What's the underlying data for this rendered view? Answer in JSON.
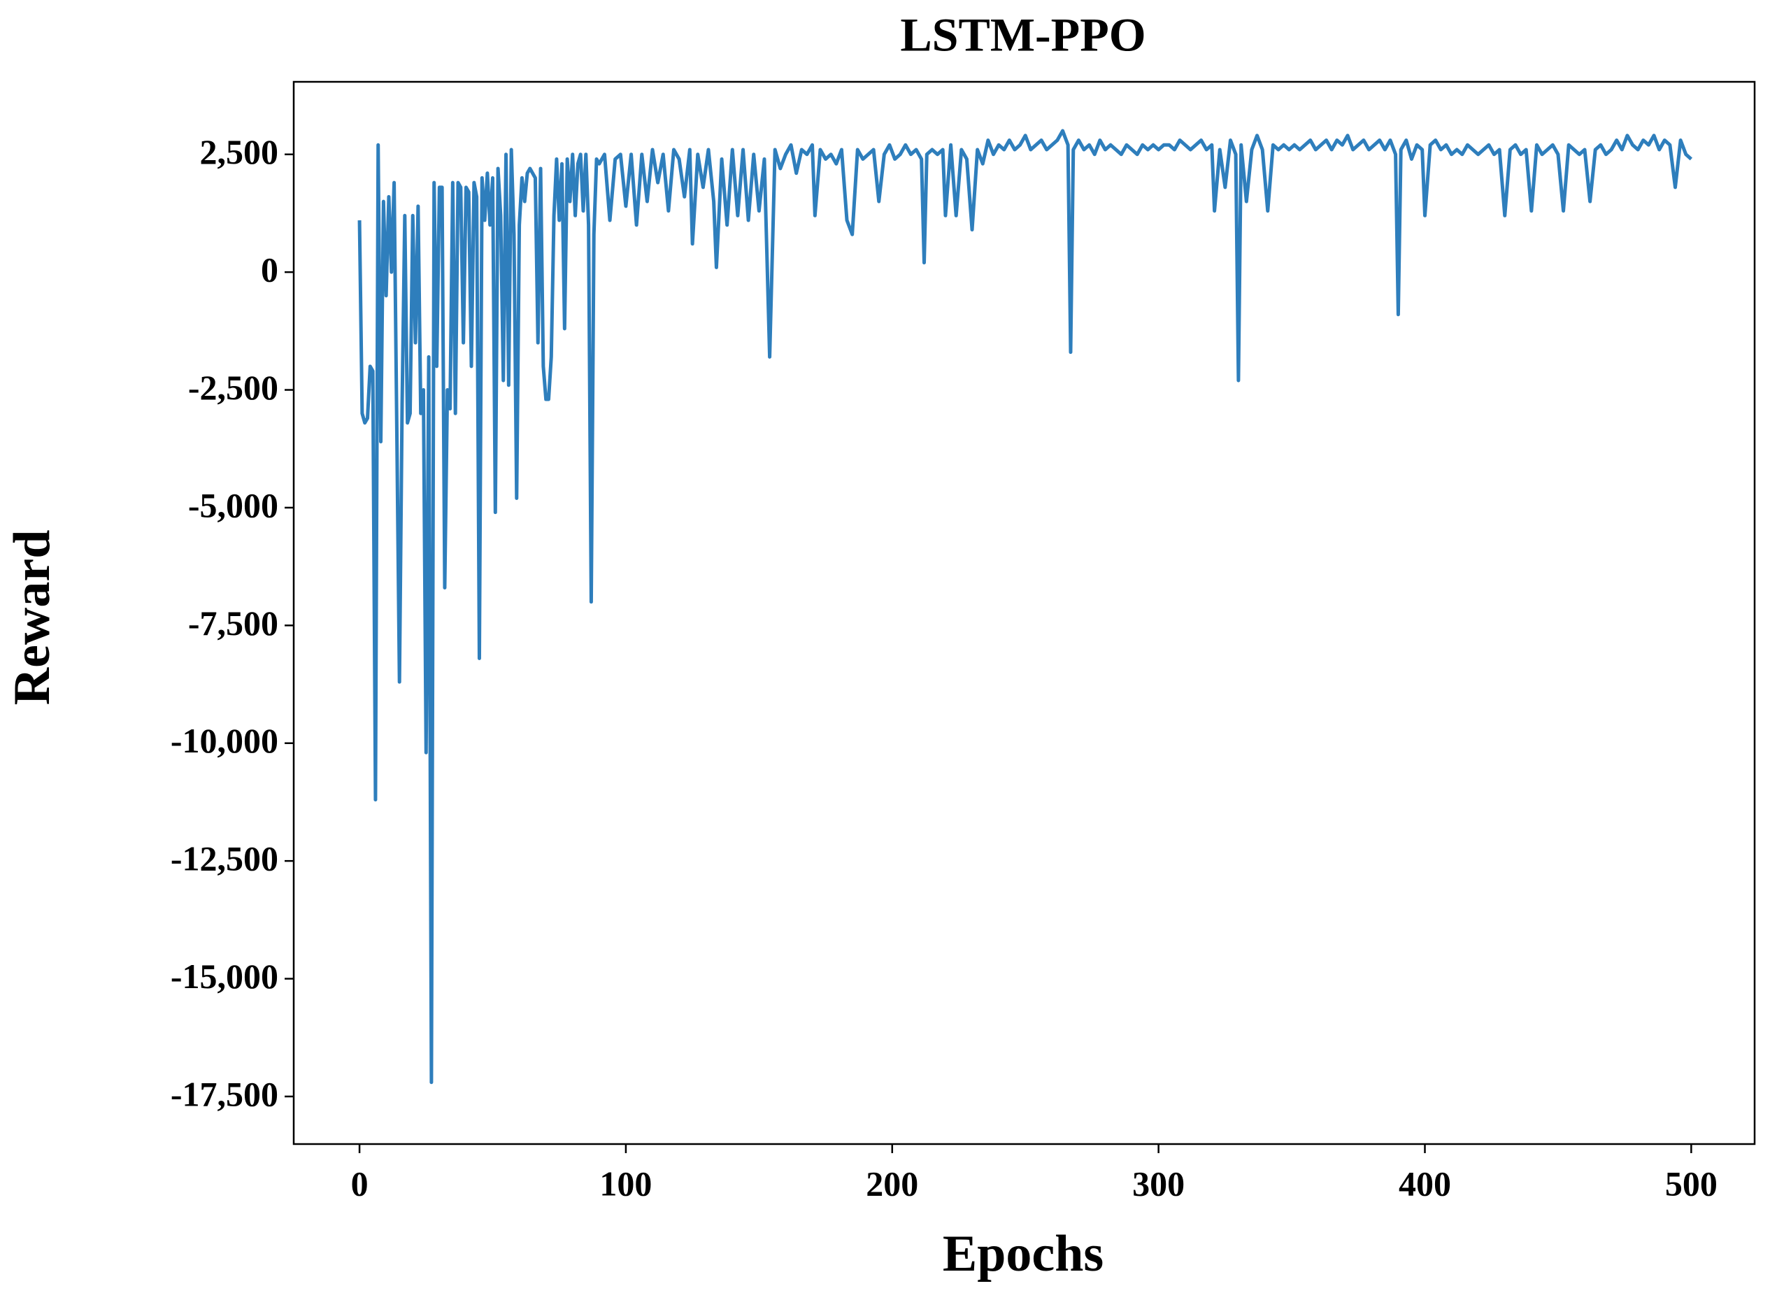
{
  "chart_data": {
    "type": "line",
    "title": "LSTM-PPO",
    "x_label": "Epochs",
    "y_label": "Reward",
    "xlim": [
      -24.7,
      523.8
    ],
    "xticks": [
      0,
      100,
      200,
      300,
      400,
      500
    ],
    "ylim": [
      -18510,
      4040
    ],
    "yticks": [
      {
        "value": 2500,
        "label": "2,500"
      },
      0,
      {
        "value": -2500,
        "label": "-2,500"
      },
      {
        "value": -5000,
        "label": "-5,000"
      },
      {
        "value": -7500,
        "label": "-7,500"
      },
      {
        "value": -10000,
        "label": "-10,000"
      },
      {
        "value": -12500,
        "label": "-12,500"
      },
      {
        "value": -15000,
        "label": "-15,000"
      },
      {
        "value": -17500,
        "label": "-17,500"
      }
    ],
    "grid": false,
    "series": [
      {
        "name": "Reward",
        "color": "#2e7ebc",
        "x": [
          0,
          1,
          2,
          3,
          4,
          5,
          6,
          7,
          8,
          9,
          10,
          11,
          12,
          13,
          14,
          15,
          16,
          17,
          18,
          19,
          20,
          21,
          22,
          23,
          24,
          25,
          26,
          27,
          28,
          29,
          30,
          31,
          32,
          33,
          34,
          35,
          36,
          37,
          38,
          39,
          40,
          41,
          42,
          43,
          44,
          45,
          46,
          47,
          48,
          49,
          50,
          51,
          52,
          53,
          54,
          55,
          56,
          57,
          58,
          59,
          60,
          61,
          62,
          63,
          64,
          65,
          66,
          67,
          68,
          69,
          70,
          71,
          72,
          73,
          74,
          75,
          76,
          77,
          78,
          79,
          80,
          81,
          82,
          83,
          84,
          85,
          86,
          87,
          88,
          89,
          90,
          92,
          94,
          96,
          98,
          100,
          102,
          104,
          106,
          108,
          110,
          112,
          114,
          116,
          118,
          120,
          122,
          124,
          125,
          127,
          129,
          131,
          133,
          134,
          136,
          138,
          140,
          142,
          144,
          146,
          148,
          150,
          152,
          154,
          156,
          158,
          160,
          162,
          164,
          166,
          168,
          170,
          171,
          173,
          175,
          177,
          179,
          181,
          183,
          185,
          187,
          189,
          191,
          193,
          195,
          197,
          199,
          201,
          203,
          205,
          207,
          209,
          211,
          212,
          213,
          215,
          217,
          219,
          220,
          222,
          224,
          226,
          228,
          230,
          232,
          234,
          236,
          238,
          240,
          242,
          244,
          246,
          248,
          250,
          252,
          254,
          256,
          258,
          260,
          262,
          264,
          266,
          267,
          268,
          270,
          272,
          274,
          276,
          278,
          280,
          282,
          284,
          286,
          288,
          290,
          292,
          294,
          296,
          298,
          300,
          302,
          304,
          306,
          308,
          310,
          312,
          314,
          316,
          318,
          320,
          321,
          323,
          325,
          327,
          329,
          330,
          331,
          333,
          335,
          337,
          339,
          341,
          343,
          345,
          347,
          349,
          351,
          353,
          355,
          357,
          359,
          361,
          363,
          365,
          367,
          369,
          371,
          373,
          375,
          377,
          379,
          381,
          383,
          385,
          387,
          389,
          390,
          391,
          393,
          395,
          397,
          399,
          400,
          402,
          404,
          406,
          408,
          410,
          412,
          414,
          416,
          418,
          420,
          422,
          424,
          426,
          428,
          430,
          432,
          434,
          436,
          438,
          440,
          442,
          444,
          446,
          448,
          450,
          452,
          454,
          456,
          458,
          460,
          462,
          464,
          466,
          468,
          470,
          472,
          474,
          476,
          478,
          480,
          482,
          484,
          486,
          488,
          490,
          492,
          494,
          496,
          498,
          500
        ],
        "values": [
          1100,
          -3000,
          -3200,
          -3100,
          -2000,
          -2100,
          -11200,
          2700,
          -3600,
          1500,
          -500,
          1600,
          0,
          1900,
          -3300,
          -8700,
          -2800,
          1200,
          -3200,
          -3000,
          1200,
          -1500,
          1400,
          -3000,
          -2500,
          -10200,
          -1800,
          -17200,
          1900,
          -2000,
          1800,
          1800,
          -6700,
          -2500,
          -2900,
          1900,
          -3000,
          1900,
          1800,
          -1500,
          1800,
          1700,
          -2000,
          1900,
          1600,
          -8200,
          2000,
          1100,
          2100,
          1000,
          2000,
          -5100,
          2200,
          1200,
          -2300,
          2500,
          -2400,
          2600,
          800,
          -4800,
          1000,
          2000,
          1500,
          2100,
          2200,
          2100,
          2000,
          -1500,
          2200,
          -2000,
          -2700,
          -2700,
          -1800,
          1200,
          2400,
          1100,
          2300,
          -1200,
          2400,
          1500,
          2500,
          1200,
          2300,
          2500,
          1300,
          2500,
          1000,
          -7000,
          800,
          2400,
          2300,
          2500,
          1100,
          2400,
          2500,
          1400,
          2500,
          1000,
          2500,
          1500,
          2600,
          1900,
          2500,
          1300,
          2600,
          2400,
          1600,
          2600,
          600,
          2500,
          1800,
          2600,
          1500,
          100,
          2400,
          1000,
          2600,
          1200,
          2600,
          1100,
          2500,
          1300,
          2400,
          -1800,
          2600,
          2200,
          2500,
          2700,
          2100,
          2600,
          2500,
          2700,
          1200,
          2600,
          2400,
          2500,
          2300,
          2600,
          1100,
          800,
          2600,
          2400,
          2500,
          2600,
          1500,
          2500,
          2700,
          2400,
          2500,
          2700,
          2500,
          2600,
          2400,
          200,
          2500,
          2600,
          2500,
          2600,
          1200,
          2700,
          1200,
          2600,
          2400,
          900,
          2600,
          2300,
          2800,
          2500,
          2700,
          2600,
          2800,
          2600,
          2700,
          2900,
          2600,
          2700,
          2800,
          2600,
          2700,
          2800,
          3000,
          2700,
          -1700,
          2600,
          2800,
          2600,
          2700,
          2500,
          2800,
          2600,
          2700,
          2600,
          2500,
          2700,
          2600,
          2500,
          2700,
          2600,
          2700,
          2600,
          2700,
          2700,
          2600,
          2800,
          2700,
          2600,
          2700,
          2800,
          2600,
          2700,
          1300,
          2600,
          1800,
          2800,
          2500,
          -2300,
          2700,
          1500,
          2600,
          2900,
          2600,
          1300,
          2700,
          2600,
          2700,
          2600,
          2700,
          2600,
          2700,
          2800,
          2600,
          2700,
          2800,
          2600,
          2800,
          2700,
          2900,
          2600,
          2700,
          2800,
          2600,
          2700,
          2800,
          2600,
          2800,
          2500,
          -900,
          2600,
          2800,
          2400,
          2700,
          2600,
          1200,
          2700,
          2800,
          2600,
          2700,
          2500,
          2600,
          2500,
          2700,
          2600,
          2500,
          2600,
          2700,
          2500,
          2600,
          1200,
          2600,
          2700,
          2500,
          2600,
          1300,
          2700,
          2500,
          2600,
          2700,
          2500,
          1300,
          2700,
          2600,
          2500,
          2600,
          1500,
          2600,
          2700,
          2500,
          2600,
          2800,
          2600,
          2900,
          2700,
          2600,
          2800,
          2700,
          2900,
          2600,
          2800,
          2700,
          1800,
          2800,
          2500,
          2400
        ]
      }
    ]
  }
}
